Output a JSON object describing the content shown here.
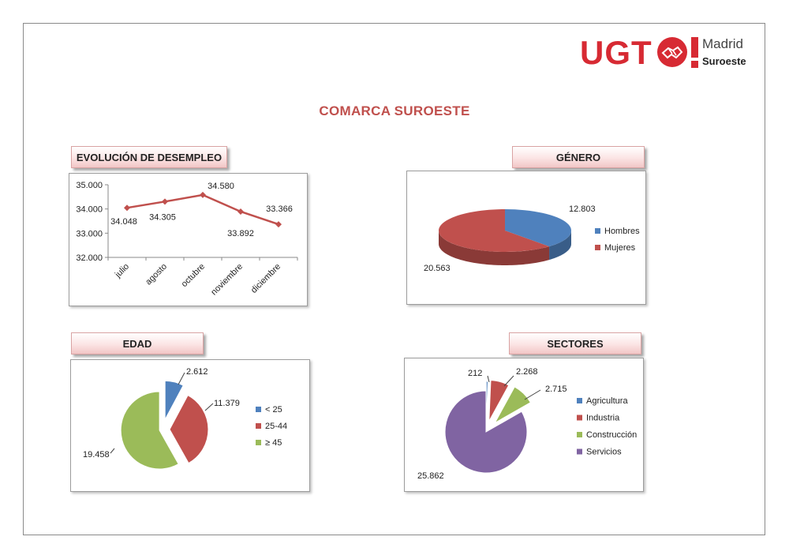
{
  "logo": {
    "text": "UGT",
    "city": "Madrid",
    "region": "Suroeste"
  },
  "page_title": "COMARCA SUROESTE",
  "sections": {
    "evolucion": "EVOLUCIÓN DE DESEMPLEO",
    "genero": "GÉNERO",
    "edad": "EDAD",
    "sectores": "SECTORES"
  },
  "chart_data": [
    {
      "id": "evolucion",
      "type": "line",
      "categories": [
        "julio",
        "agosto",
        "octubre",
        "noviembre",
        "diciembre"
      ],
      "values": [
        34048,
        34305,
        34580,
        33892,
        33366
      ],
      "value_labels": [
        "34.048",
        "34.305",
        "34.580",
        "33.892",
        "33.366"
      ],
      "ylim": [
        32000,
        35000
      ],
      "yticks": [
        35000,
        34000,
        33000,
        32000
      ],
      "ytick_labels": [
        "35.000",
        "34.000",
        "33.000",
        "32.000"
      ],
      "grid": false,
      "colors": {
        "line": "#c0504d"
      }
    },
    {
      "id": "genero",
      "type": "pie",
      "categories": [
        "Hombres",
        "Mujeres"
      ],
      "values": [
        12803,
        20563
      ],
      "value_labels": [
        "12.803",
        "20.563"
      ],
      "colors": [
        "#4f81bd",
        "#c0504d"
      ],
      "legend": "right"
    },
    {
      "id": "edad",
      "type": "pie",
      "categories": [
        "< 25",
        "25-44",
        "≥ 45"
      ],
      "values": [
        2612,
        11379,
        19458
      ],
      "value_labels": [
        "2.612",
        "11.379",
        "19.458"
      ],
      "colors": [
        "#4f81bd",
        "#c0504d",
        "#9bbb59"
      ],
      "legend": "right"
    },
    {
      "id": "sectores",
      "type": "pie",
      "categories": [
        "Agricultura",
        "Industria",
        "Construcción",
        "Servicios"
      ],
      "values": [
        212,
        2268,
        2715,
        25862
      ],
      "value_labels": [
        "212",
        "2.268",
        "2.715",
        "25.862"
      ],
      "colors": [
        "#4f81bd",
        "#c0504d",
        "#9bbb59",
        "#8064a2"
      ],
      "legend": "right"
    }
  ]
}
